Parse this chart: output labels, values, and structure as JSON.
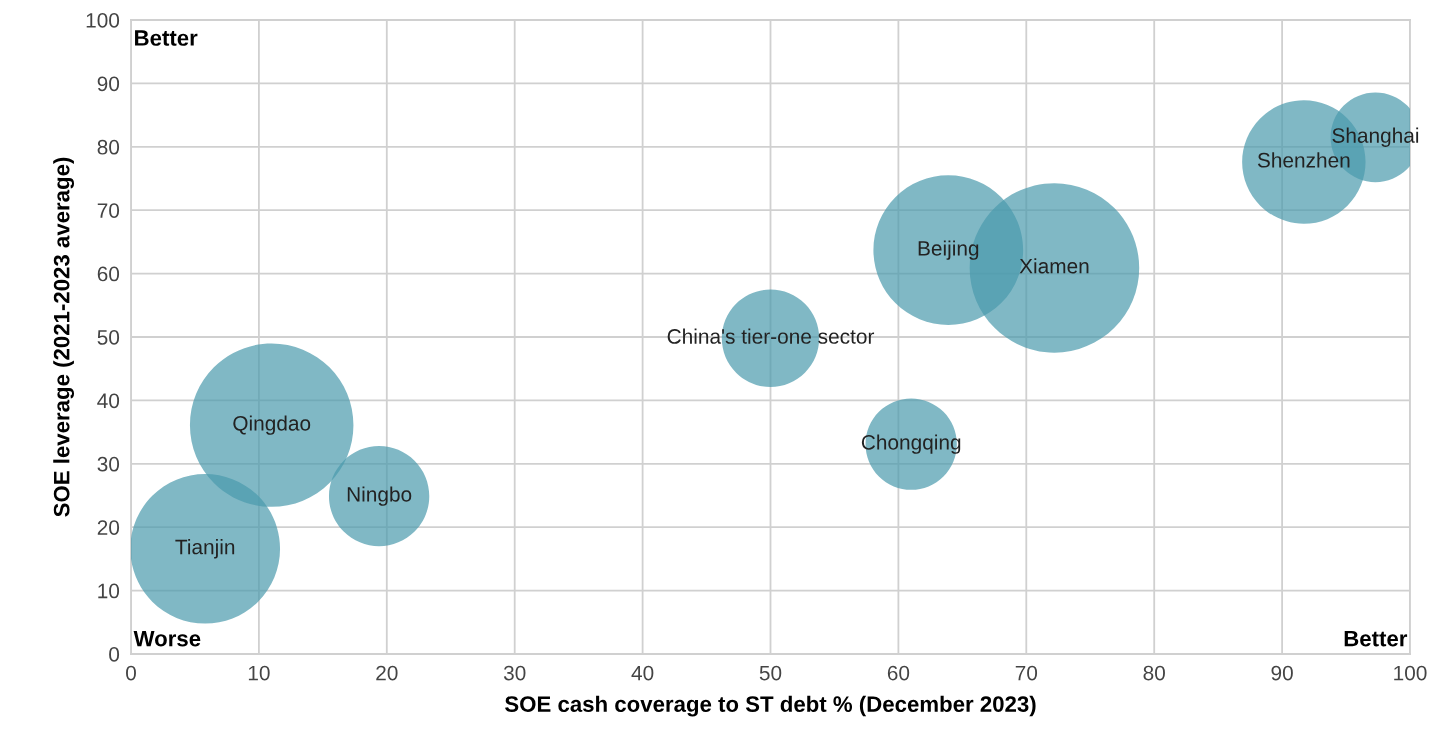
{
  "chart_data": {
    "type": "bubble",
    "xlabel": "SOE cash coverage to ST debt % (December 2023)",
    "ylabel": "SOE leverage (2021-2023 average)",
    "xlim": [
      0,
      100
    ],
    "ylim": [
      0,
      100
    ],
    "xticks": [
      0,
      10,
      20,
      30,
      40,
      50,
      60,
      70,
      80,
      90,
      100
    ],
    "yticks": [
      0,
      10,
      20,
      30,
      40,
      50,
      60,
      70,
      80,
      90,
      100
    ],
    "grid": true,
    "legend": false,
    "annotations": [
      "Better",
      "Worse",
      "Better"
    ],
    "series": [
      {
        "name": "Tianjin",
        "color": "#4a9aad",
        "x": [
          5.8
        ],
        "values": [
          16.6
        ],
        "sizes": [
          0.78
        ]
      },
      {
        "name": "Qingdao",
        "color": "#4a9aad",
        "x": [
          11.0
        ],
        "values": [
          36.1
        ],
        "sizes": [
          0.93
        ]
      },
      {
        "name": "Ningbo",
        "color": "#4a9aad",
        "x": [
          19.4
        ],
        "values": [
          24.9
        ],
        "sizes": [
          0.35
        ]
      },
      {
        "name": "China's tier-one sector",
        "color": "#4a9aad",
        "x": [
          50.0
        ],
        "values": [
          49.8
        ],
        "sizes": [
          0.33
        ]
      },
      {
        "name": "Chongqing",
        "color": "#4a9aad",
        "x": [
          61.0
        ],
        "values": [
          33.1
        ],
        "sizes": [
          0.29
        ]
      },
      {
        "name": "Beijing",
        "color": "#4a9aad",
        "x": [
          63.9
        ],
        "values": [
          63.7
        ],
        "sizes": [
          0.78
        ]
      },
      {
        "name": "Xiamen",
        "color": "#4a9aad",
        "x": [
          72.2
        ],
        "values": [
          60.9
        ],
        "sizes": [
          1
        ]
      },
      {
        "name": "Shenzhen",
        "color": "#4a9aad",
        "x": [
          91.7
        ],
        "values": [
          77.6
        ],
        "sizes": [
          0.53
        ]
      },
      {
        "name": "Shanghai",
        "color": "#4a9aad",
        "x": [
          97.3
        ],
        "values": [
          81.5
        ],
        "sizes": [
          0.28
        ]
      }
    ]
  }
}
